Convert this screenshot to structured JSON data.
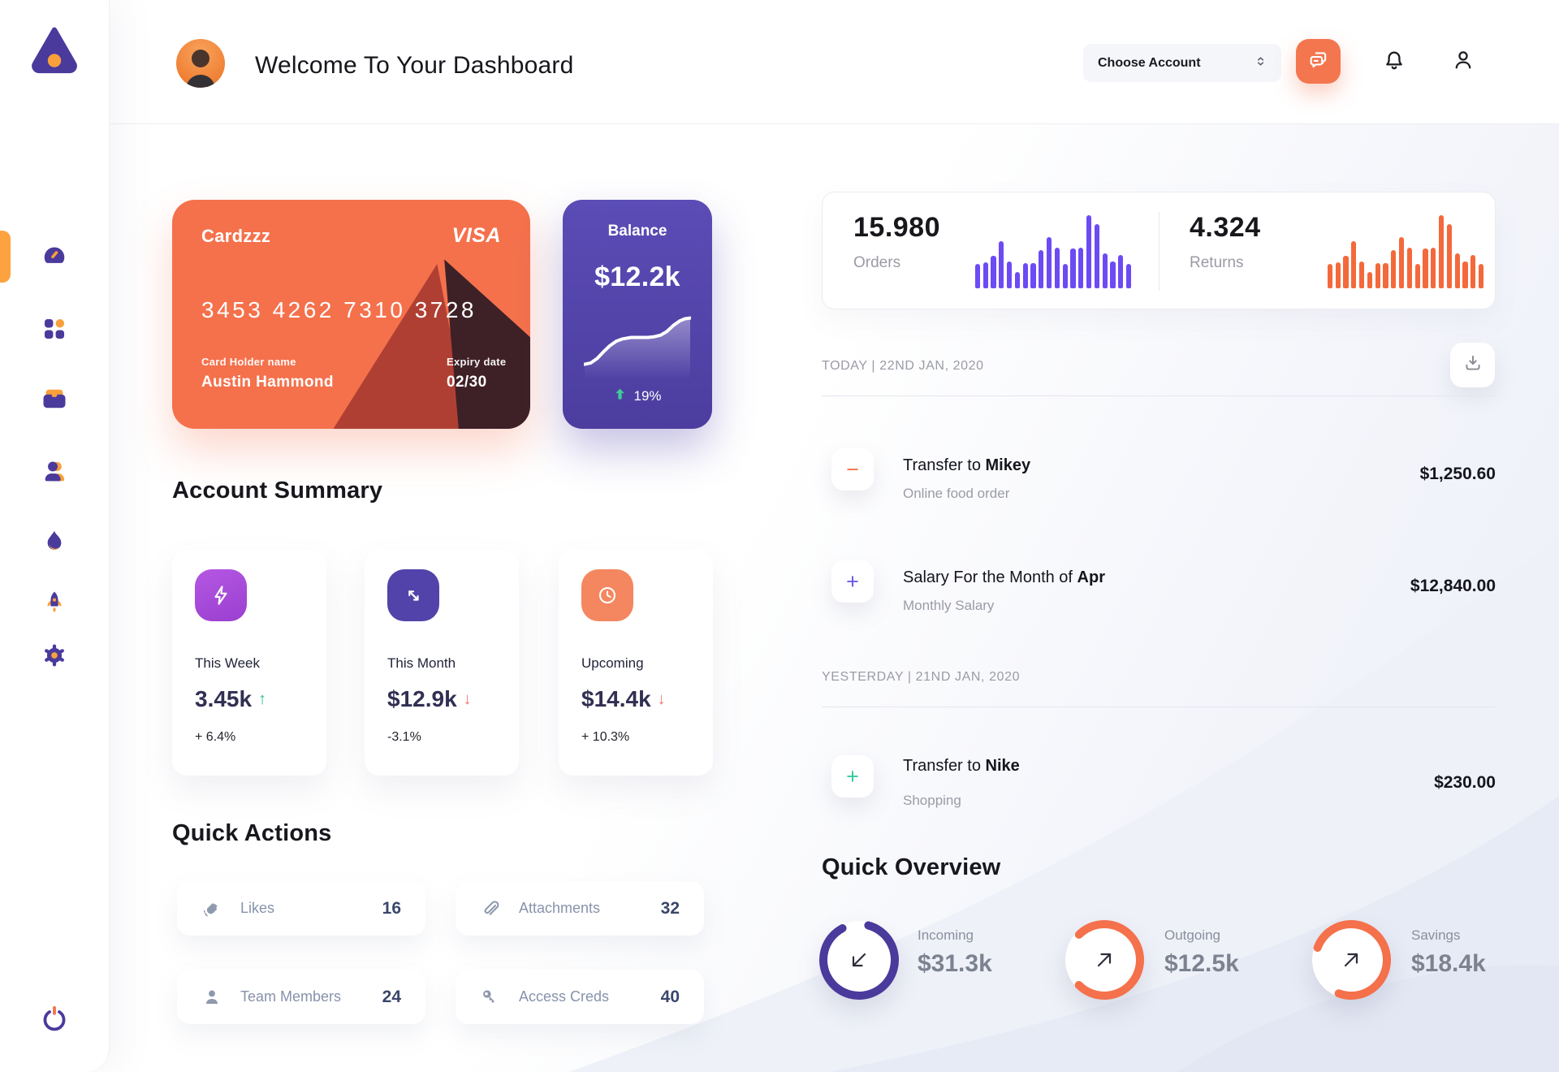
{
  "header": {
    "title": "Welcome To Your Dashboard",
    "account_select": {
      "value": "Choose Account"
    }
  },
  "sidebar": {
    "items": [
      {
        "icon": "speedometer-icon",
        "name": "dashboard",
        "active": true
      },
      {
        "icon": "grid-icon",
        "name": "apps"
      },
      {
        "icon": "briefcase-icon",
        "name": "work"
      },
      {
        "icon": "users-icon",
        "name": "members"
      },
      {
        "icon": "flame-icon",
        "name": "trending"
      },
      {
        "icon": "rocket-icon",
        "name": "launch"
      },
      {
        "icon": "gear-icon",
        "name": "settings"
      },
      {
        "icon": "power-icon",
        "name": "logout"
      }
    ]
  },
  "wallet_card": {
    "name": "Cardzzz",
    "brand": "VISA",
    "number": "3453 4262 7310 3728",
    "holder_label": "Card Holder name",
    "holder": "Austin Hammond",
    "expiry_label": "Expiry date",
    "expiry": "02/30"
  },
  "balance_card": {
    "title": "Balance",
    "amount": "$12.2k",
    "change": "19%"
  },
  "stats": {
    "orders": {
      "value": "15.980",
      "label": "Orders"
    },
    "returns": {
      "value": "4.324",
      "label": "Returns"
    }
  },
  "chart_data": [
    {
      "type": "bar",
      "title": "Orders sparkline",
      "values": [
        33,
        36,
        45,
        65,
        37,
        22,
        35,
        35,
        52,
        70,
        56,
        33,
        55,
        56,
        100,
        88,
        48,
        37,
        46,
        33
      ],
      "ylim": [
        0,
        100
      ],
      "color": "#6C4BF4"
    },
    {
      "type": "bar",
      "title": "Returns sparkline",
      "values": [
        33,
        36,
        45,
        65,
        37,
        22,
        35,
        35,
        52,
        70,
        56,
        33,
        55,
        56,
        100,
        88,
        48,
        37,
        46,
        33
      ],
      "ylim": [
        0,
        100
      ],
      "color": "#F4693B"
    },
    {
      "type": "line",
      "title": "Balance trend",
      "points": [
        [
          0,
          80
        ],
        [
          6,
          78
        ],
        [
          12,
          72
        ],
        [
          18,
          63
        ],
        [
          24,
          55
        ],
        [
          30,
          49
        ],
        [
          36,
          46
        ],
        [
          44,
          44
        ],
        [
          52,
          44
        ],
        [
          60,
          44
        ],
        [
          66,
          43
        ],
        [
          72,
          41
        ],
        [
          78,
          36
        ],
        [
          84,
          28
        ],
        [
          90,
          22
        ],
        [
          95,
          19
        ],
        [
          100,
          18
        ]
      ],
      "color": "#ffffff"
    }
  ],
  "account_summary": {
    "title": "Account Summary",
    "cards": [
      {
        "label": "This Week",
        "value": "3.45k",
        "trend": "up",
        "percent": "+ 6.4%",
        "icon": "lightning-icon",
        "icon_bg": "#A94FD6"
      },
      {
        "label": "This Month",
        "value": "$12.9k",
        "trend": "down",
        "percent": "-3.1%",
        "icon": "swap-arrows-icon",
        "icon_bg": "#5243AA"
      },
      {
        "label": "Upcoming",
        "value": "$14.4k",
        "trend": "down",
        "percent": "+ 10.3%",
        "icon": "clock-icon",
        "icon_bg": "#F4875F"
      }
    ]
  },
  "quick_actions": {
    "title": "Quick Actions",
    "items": [
      {
        "label": "Likes",
        "count": "16",
        "icon": "clap-icon"
      },
      {
        "label": "Attachments",
        "count": "32",
        "icon": "paperclip-icon"
      },
      {
        "label": "Team Members",
        "count": "24",
        "icon": "member-icon"
      },
      {
        "label": "Access Creds",
        "count": "40",
        "icon": "key-icon"
      }
    ]
  },
  "transactions": {
    "groups": [
      {
        "date_label": "TODAY | 22ND JAN, 2020",
        "rows": [
          {
            "sign": "−",
            "sign_color": "#F4764F",
            "title_prefix": "Transfer to ",
            "title_bold": "Mikey",
            "subtitle": "Online food order",
            "amount": "$1,250.60"
          },
          {
            "sign": "+",
            "sign_color": "#6A5AE0",
            "title_prefix": "Salary For the Month of ",
            "title_bold": "Apr",
            "subtitle": "Monthly Salary",
            "amount": "$12,840.00"
          }
        ]
      },
      {
        "date_label": "YESTERDAY | 21ND JAN, 2020",
        "rows": [
          {
            "sign": "+",
            "sign_color": "#35C9A0",
            "title_prefix": "Transfer to ",
            "title_bold": "Nike",
            "subtitle": "Shopping",
            "amount": "$230.00"
          }
        ]
      }
    ]
  },
  "quick_overview": {
    "title": "Quick Overview",
    "items": [
      {
        "label": "Incoming",
        "value": "$31.3k",
        "color": "#4A3A9C",
        "progress": 0.88,
        "start_angle": -75,
        "direction": "down-left"
      },
      {
        "label": "Outgoing",
        "value": "$12.5k",
        "color": "#F4714C",
        "progress": 0.75,
        "start_angle": -135,
        "direction": "up-right"
      },
      {
        "label": "Savings",
        "value": "$18.4k",
        "color": "#F4714C",
        "progress": 0.75,
        "start_angle": -160,
        "direction": "up-right"
      }
    ]
  },
  "colors": {
    "accent_orange": "#F4714C",
    "accent_purple": "#4A3A9C",
    "bar_purple": "#6C4BF4",
    "bar_orange": "#F4693B",
    "green": "#2fbf8f",
    "red": "#f0756a"
  }
}
